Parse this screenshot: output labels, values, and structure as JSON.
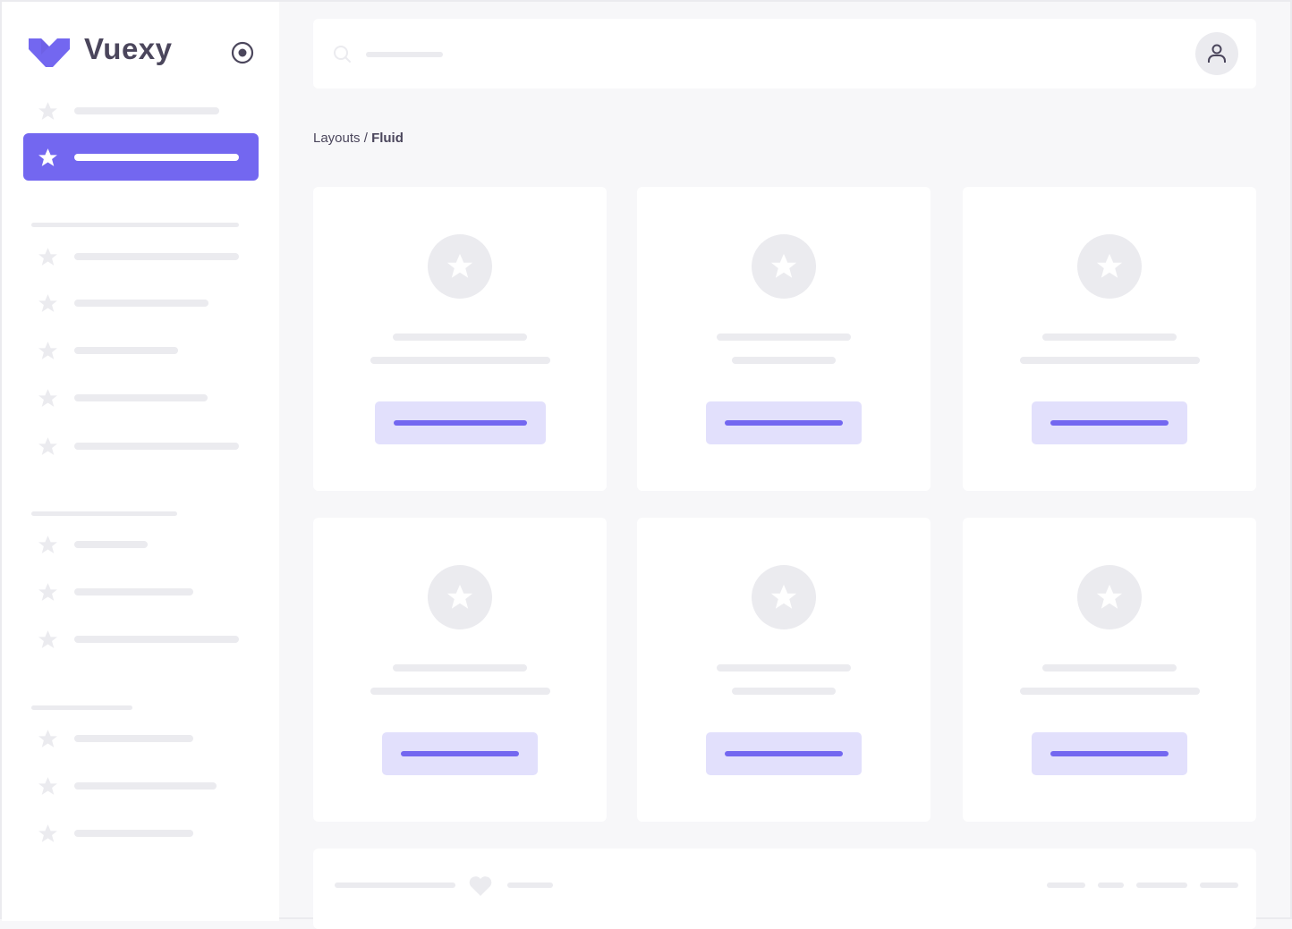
{
  "brand": {
    "name": "Vuexy",
    "color": "#7367f0"
  },
  "breadcrumb": {
    "parent": "Layouts",
    "separator": " / ",
    "current": "Fluid"
  },
  "icons": {
    "logo": "vuexy-logo",
    "toggle": "radio-target-icon",
    "nav": "star-icon",
    "search": "search-icon",
    "user": "user-icon",
    "footer": "heart-icon"
  },
  "colors": {
    "primary": "#7367f0",
    "primary_light": "#e2e0fc",
    "placeholder": "#ebebef",
    "background": "#f7f7f9",
    "text": "#4b465c"
  }
}
